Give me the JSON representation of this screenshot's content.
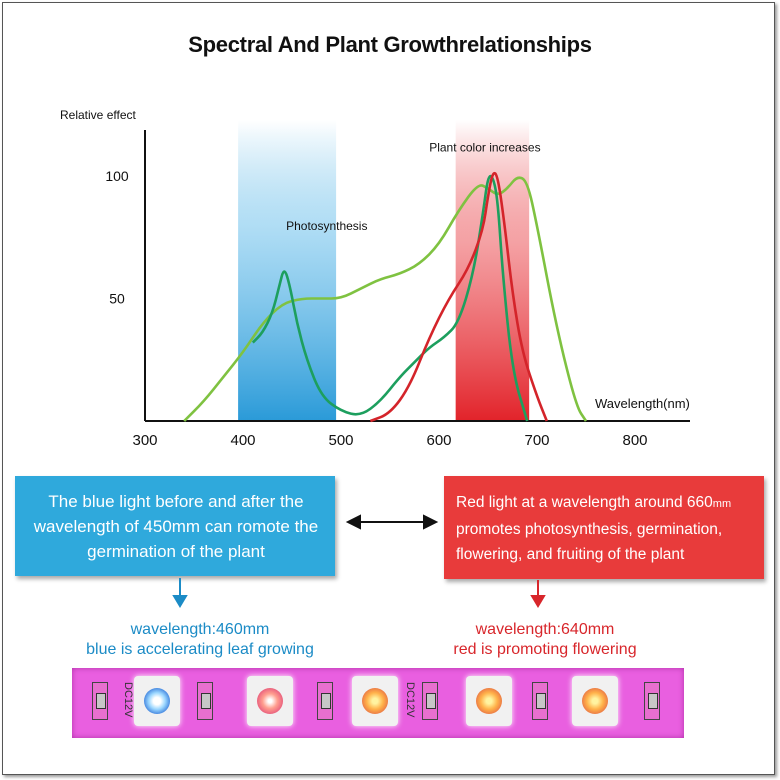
{
  "title": "Spectral And Plant  Growthrelationships",
  "chart_data": {
    "type": "line",
    "ylabel": "Relative effect",
    "xlabel": "Wavelength(nm)",
    "xlim": [
      300,
      850
    ],
    "ylim": [
      0,
      120
    ],
    "x_ticks": [
      300,
      400,
      500,
      600,
      700,
      800
    ],
    "y_ticks": [
      50,
      100
    ],
    "bands": [
      {
        "name": "blue",
        "x_range": [
          395,
          495
        ],
        "color": "#3aa8e0"
      },
      {
        "name": "red",
        "x_range": [
          617,
          692
        ],
        "color": "#e2232a"
      }
    ],
    "annotations": [
      {
        "text": "Plant color increases",
        "x": 590,
        "y": 110
      },
      {
        "text": "Photosynthesis",
        "x": 495,
        "y": 78
      }
    ],
    "series": [
      {
        "color": "#7fc241",
        "x": [
          340,
          360,
          380,
          400,
          420,
          440,
          460,
          480,
          500,
          520,
          540,
          560,
          580,
          600,
          620,
          640,
          650,
          660,
          670,
          680,
          690,
          700,
          720,
          740,
          750
        ],
        "y": [
          0,
          8,
          18,
          28,
          40,
          48,
          50,
          50,
          50,
          54,
          58,
          60,
          64,
          72,
          86,
          97,
          95,
          92,
          95,
          100,
          98,
          80,
          38,
          6,
          0
        ]
      },
      {
        "color": "#1d9f5e",
        "x": [
          410,
          420,
          430,
          437,
          442,
          448,
          455,
          465,
          480,
          500,
          520,
          540,
          560,
          575,
          590,
          605,
          620,
          635,
          645,
          650,
          655,
          660,
          665,
          675,
          690
        ],
        "y": [
          32,
          36,
          44,
          55,
          63,
          55,
          40,
          25,
          10,
          4,
          2,
          8,
          18,
          24,
          30,
          34,
          40,
          60,
          85,
          100,
          100,
          90,
          60,
          20,
          0
        ]
      },
      {
        "color": "#d4242a",
        "x": [
          530,
          550,
          570,
          590,
          610,
          630,
          645,
          650,
          655,
          660,
          667,
          675,
          685,
          700,
          710
        ],
        "y": [
          0,
          3,
          14,
          34,
          50,
          62,
          78,
          92,
          102,
          100,
          80,
          52,
          28,
          10,
          0
        ]
      }
    ]
  },
  "info_boxes": {
    "blue": {
      "text": "The blue light before and after the wavelength of 450mm can romote the germination of the plant"
    },
    "red": {
      "line1_main": "Red light at a wavelength around 660",
      "line1_small": "mm",
      "line2": "promotes photosynthesis, germination,",
      "line3": "flowering, and fruiting of the plant"
    }
  },
  "captions": {
    "blue_line1": "wavelength:460mm",
    "blue_line2": "blue is accelerating leaf growing",
    "red_line1": "wavelength:640mm",
    "red_line2": "red is promoting flowering"
  },
  "strip": {
    "dc_label": "DC12V"
  },
  "colors": {
    "blue_box": "#2fa9dc",
    "red_box": "#e83b3b",
    "strip": "#e95fe0"
  }
}
